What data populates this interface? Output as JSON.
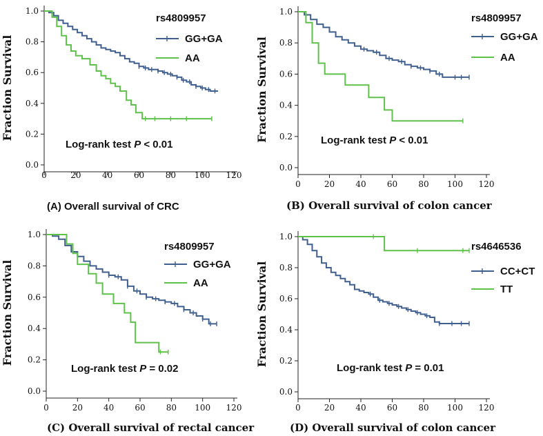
{
  "figure": {
    "panels": [
      {
        "id": "A",
        "caption": "(A) Overall survival of CRC",
        "caption_font": "sans"
      },
      {
        "id": "B",
        "caption": "(B) Overall survival of colon cancer",
        "caption_font": "serif"
      },
      {
        "id": "C",
        "caption": "(C) Overall survival of rectal cancer",
        "caption_font": "serif"
      },
      {
        "id": "D",
        "caption": "(D) Overall survival of colon cancer",
        "caption_font": "serif"
      }
    ]
  },
  "chart_data": [
    {
      "type": "line",
      "subtype": "kaplan-meier",
      "title": "(A) Overall survival of CRC",
      "xlabel": "",
      "ylabel": "Fraction Survival",
      "xlim": [
        0,
        120
      ],
      "ylim": [
        0,
        1.0
      ],
      "xticks": [
        "0",
        "20",
        "40",
        "60",
        "80",
        "100",
        "120"
      ],
      "yticks": [
        "0.0",
        "0.2",
        "0.4",
        "0.6",
        "0.8",
        "1.0"
      ],
      "legend_title": "rs4809957",
      "legend_position": "top-right",
      "annotation": {
        "prefix": "Log-rank test ",
        "p": "P",
        "suffix": " < 0.01"
      },
      "series": [
        {
          "name": "GG+GA",
          "color": "#3f5f8f",
          "x": [
            0,
            3,
            6,
            9,
            12,
            15,
            18,
            21,
            24,
            27,
            30,
            33,
            36,
            39,
            42,
            45,
            48,
            51,
            54,
            57,
            60,
            63,
            66,
            69,
            72,
            75,
            78,
            81,
            84,
            87,
            90,
            93,
            96,
            99,
            102,
            105,
            108,
            110
          ],
          "y": [
            1.0,
            0.99,
            0.97,
            0.94,
            0.92,
            0.9,
            0.88,
            0.86,
            0.84,
            0.82,
            0.8,
            0.78,
            0.76,
            0.75,
            0.74,
            0.73,
            0.71,
            0.69,
            0.67,
            0.66,
            0.64,
            0.63,
            0.62,
            0.62,
            0.61,
            0.6,
            0.59,
            0.58,
            0.57,
            0.55,
            0.54,
            0.52,
            0.51,
            0.5,
            0.49,
            0.48,
            0.48,
            0.48
          ],
          "censor_x": [
            60,
            64,
            68,
            72,
            76,
            80,
            84,
            88,
            92,
            96,
            100,
            104,
            108
          ]
        },
        {
          "name": "AA",
          "color": "#5ec14a",
          "x": [
            0,
            5,
            8,
            11,
            14,
            17,
            20,
            24,
            29,
            33,
            36,
            39,
            42,
            45,
            48,
            52,
            55,
            58,
            62,
            70,
            80,
            90,
            100,
            106
          ],
          "y": [
            1.0,
            0.96,
            0.9,
            0.84,
            0.78,
            0.74,
            0.71,
            0.69,
            0.65,
            0.61,
            0.58,
            0.56,
            0.53,
            0.51,
            0.48,
            0.42,
            0.39,
            0.34,
            0.3,
            0.3,
            0.3,
            0.3,
            0.3,
            0.3
          ],
          "censor_x": [
            64,
            70,
            80,
            90,
            106
          ]
        }
      ]
    },
    {
      "type": "line",
      "subtype": "kaplan-meier",
      "title": "(B) Overall survival of colon cancer",
      "xlabel": "",
      "ylabel": "Fraction Survival",
      "xlim": [
        0,
        120
      ],
      "ylim": [
        0,
        1.0
      ],
      "xticks": [
        "0",
        "20",
        "40",
        "60",
        "80",
        "100",
        "120"
      ],
      "yticks": [
        "0.0",
        "0.2",
        "0.4",
        "0.6",
        "0.8",
        "1.0"
      ],
      "legend_title": "rs4809957",
      "legend_position": "top-right",
      "annotation": {
        "prefix": "Log-rank test ",
        "p": "P",
        "suffix": " < 0.01"
      },
      "series": [
        {
          "name": "GG+GA",
          "color": "#3f5f8f",
          "x": [
            0,
            4,
            8,
            12,
            16,
            20,
            24,
            28,
            32,
            36,
            40,
            44,
            48,
            52,
            56,
            60,
            64,
            68,
            72,
            76,
            80,
            84,
            88,
            92,
            96,
            100,
            104,
            109
          ],
          "y": [
            1.0,
            0.98,
            0.95,
            0.92,
            0.9,
            0.87,
            0.84,
            0.82,
            0.8,
            0.78,
            0.76,
            0.75,
            0.74,
            0.72,
            0.7,
            0.69,
            0.68,
            0.66,
            0.65,
            0.64,
            0.63,
            0.62,
            0.6,
            0.58,
            0.58,
            0.58,
            0.58,
            0.58
          ],
          "censor_x": [
            42,
            50,
            58,
            66,
            72,
            78,
            84,
            90,
            100,
            104,
            109
          ]
        },
        {
          "name": "AA",
          "color": "#5ec14a",
          "x": [
            0,
            5,
            9,
            13,
            17,
            21,
            30,
            40,
            45,
            50,
            55,
            60,
            70,
            80,
            90,
            105
          ],
          "y": [
            1.0,
            0.93,
            0.8,
            0.67,
            0.6,
            0.6,
            0.53,
            0.53,
            0.45,
            0.45,
            0.37,
            0.3,
            0.3,
            0.3,
            0.3,
            0.3
          ],
          "censor_x": [
            105
          ]
        }
      ]
    },
    {
      "type": "line",
      "subtype": "kaplan-meier",
      "title": "(C) Overall survival of rectal cancer",
      "xlabel": "",
      "ylabel": "Fraction Survival",
      "xlim": [
        0,
        120
      ],
      "ylim": [
        0,
        1.0
      ],
      "xticks": [
        "0",
        "20",
        "40",
        "60",
        "80",
        "100",
        "120"
      ],
      "yticks": [
        "0.0",
        "0.2",
        "0.4",
        "0.6",
        "0.8",
        "1.0"
      ],
      "legend_title": "rs4809957",
      "legend_position": "top-right",
      "annotation": {
        "prefix": "Log-rank test ",
        "p": "P",
        "suffix": " = 0.02"
      },
      "series": [
        {
          "name": "GG+GA",
          "color": "#3f5f8f",
          "x": [
            0,
            4,
            8,
            12,
            16,
            20,
            24,
            28,
            32,
            36,
            40,
            44,
            48,
            52,
            56,
            60,
            64,
            68,
            72,
            76,
            80,
            84,
            88,
            92,
            96,
            100,
            104,
            109
          ],
          "y": [
            1.0,
            0.99,
            0.97,
            0.93,
            0.89,
            0.86,
            0.83,
            0.8,
            0.78,
            0.76,
            0.74,
            0.73,
            0.71,
            0.67,
            0.64,
            0.62,
            0.6,
            0.59,
            0.58,
            0.57,
            0.56,
            0.54,
            0.52,
            0.5,
            0.48,
            0.46,
            0.43,
            0.43
          ],
          "censor_x": [
            40,
            46,
            52,
            58,
            64,
            70,
            76,
            82,
            88,
            94,
            100,
            105,
            109
          ]
        },
        {
          "name": "AA",
          "color": "#5ec14a",
          "x": [
            0,
            10,
            13,
            17,
            20,
            27,
            32,
            36,
            43,
            50,
            54,
            57,
            65,
            72,
            78
          ],
          "y": [
            1.0,
            1.0,
            0.94,
            0.88,
            0.81,
            0.75,
            0.69,
            0.62,
            0.56,
            0.5,
            0.44,
            0.31,
            0.31,
            0.25,
            0.25
          ],
          "censor_x": [
            73,
            78
          ]
        }
      ]
    },
    {
      "type": "line",
      "subtype": "kaplan-meier",
      "title": "(D) Overall survival of colon cancer",
      "xlabel": "",
      "ylabel": "Fraction Survival",
      "xlim": [
        0,
        120
      ],
      "ylim": [
        0,
        1.0
      ],
      "xticks": [
        "0",
        "20",
        "40",
        "60",
        "80",
        "100",
        "120"
      ],
      "yticks": [
        "0.0",
        "0.2",
        "0.4",
        "0.6",
        "0.8",
        "1.0"
      ],
      "legend_title": "rs4646536",
      "legend_position": "top-right",
      "annotation": {
        "prefix": "Log-rank test ",
        "p": "P",
        "suffix": " = 0.01"
      },
      "series": [
        {
          "name": "CC+CT",
          "color": "#3f5f8f",
          "x": [
            0,
            3,
            6,
            9,
            12,
            15,
            18,
            21,
            24,
            27,
            30,
            33,
            36,
            39,
            42,
            45,
            48,
            51,
            54,
            57,
            60,
            63,
            66,
            69,
            72,
            75,
            78,
            81,
            84,
            87,
            90,
            100,
            109
          ],
          "y": [
            1.0,
            0.98,
            0.95,
            0.91,
            0.87,
            0.83,
            0.8,
            0.77,
            0.75,
            0.73,
            0.71,
            0.69,
            0.66,
            0.65,
            0.64,
            0.63,
            0.61,
            0.59,
            0.58,
            0.57,
            0.56,
            0.55,
            0.54,
            0.53,
            0.52,
            0.51,
            0.5,
            0.49,
            0.48,
            0.45,
            0.44,
            0.44,
            0.44
          ],
          "censor_x": [
            46,
            52,
            58,
            64,
            70,
            76,
            82,
            90,
            98,
            104,
            109
          ]
        },
        {
          "name": "TT",
          "color": "#5ec14a",
          "x": [
            0,
            20,
            40,
            55,
            60,
            80,
            100,
            109
          ],
          "y": [
            1.0,
            1.0,
            1.0,
            0.91,
            0.91,
            0.91,
            0.91,
            0.91
          ],
          "censor_x": [
            48,
            76,
            105,
            109
          ]
        }
      ]
    }
  ]
}
